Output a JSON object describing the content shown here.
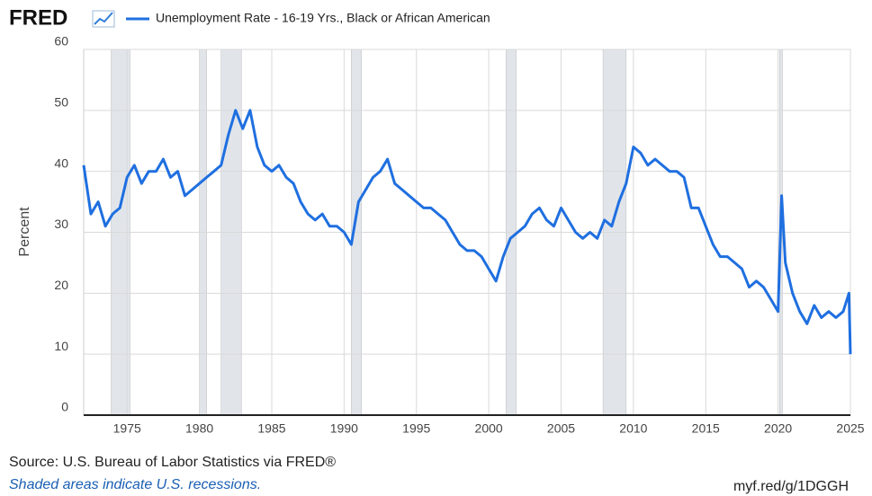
{
  "chart_data": {
    "type": "line",
    "logo": "FRED",
    "y_label": "Percent",
    "source": "Source: U.S. Bureau of Labor Statistics via FRED®",
    "note": "Shaded areas indicate U.S. recessions.",
    "link": "myf.red/g/1DGGH",
    "xlim": [
      1972,
      2025
    ],
    "xticks": [
      1975,
      1980,
      1985,
      1990,
      1995,
      2000,
      2005,
      2010,
      2015,
      2020,
      2025
    ],
    "ylim": [
      0,
      60
    ],
    "yticks": [
      0,
      10,
      20,
      30,
      40,
      50,
      60
    ],
    "grid": true,
    "recession_color": "#e1e5ea",
    "recessions": [
      [
        1973.9,
        1975.2
      ],
      [
        1980.0,
        1980.5
      ],
      [
        1981.5,
        1982.9
      ],
      [
        1990.5,
        1991.2
      ],
      [
        2001.2,
        2001.9
      ],
      [
        2007.9,
        2009.5
      ],
      [
        2020.1,
        2020.3
      ]
    ],
    "x": [
      1972.0,
      1972.5,
      1973.0,
      1973.5,
      1974.0,
      1974.5,
      1975.0,
      1975.5,
      1976.0,
      1976.5,
      1977.0,
      1977.5,
      1978.0,
      1978.5,
      1979.0,
      1979.5,
      1980.0,
      1980.5,
      1981.0,
      1981.5,
      1982.0,
      1982.5,
      1983.0,
      1983.5,
      1984.0,
      1984.5,
      1985.0,
      1985.5,
      1986.0,
      1986.5,
      1987.0,
      1987.5,
      1988.0,
      1988.5,
      1989.0,
      1989.5,
      1990.0,
      1990.5,
      1991.0,
      1991.5,
      1992.0,
      1992.5,
      1993.0,
      1993.5,
      1994.0,
      1994.5,
      1995.0,
      1995.5,
      1996.0,
      1996.5,
      1997.0,
      1997.5,
      1998.0,
      1998.5,
      1999.0,
      1999.5,
      2000.0,
      2000.5,
      2001.0,
      2001.5,
      2002.0,
      2002.5,
      2003.0,
      2003.5,
      2004.0,
      2004.5,
      2005.0,
      2005.5,
      2006.0,
      2006.5,
      2007.0,
      2007.5,
      2008.0,
      2008.5,
      2009.0,
      2009.5,
      2010.0,
      2010.5,
      2011.0,
      2011.5,
      2012.0,
      2012.5,
      2013.0,
      2013.5,
      2014.0,
      2014.5,
      2015.0,
      2015.5,
      2016.0,
      2016.5,
      2017.0,
      2017.5,
      2018.0,
      2018.5,
      2019.0,
      2019.5,
      2020.0,
      2020.25,
      2020.5,
      2021.0,
      2021.5,
      2022.0,
      2022.5,
      2023.0,
      2023.5,
      2024.0,
      2024.5,
      2024.9,
      2025.0
    ],
    "series": [
      {
        "name": "Unemployment Rate - 16-19 Yrs., Black or African American",
        "color": "#1f6fe0",
        "values": [
          41,
          33,
          35,
          31,
          33,
          34,
          39,
          41,
          38,
          40,
          40,
          42,
          39,
          40,
          36,
          37,
          38,
          39,
          40,
          41,
          46,
          50,
          47,
          50,
          44,
          41,
          40,
          41,
          39,
          38,
          35,
          33,
          32,
          33,
          31,
          31,
          30,
          28,
          35,
          37,
          39,
          40,
          42,
          38,
          37,
          36,
          35,
          34,
          34,
          33,
          32,
          30,
          28,
          27,
          27,
          26,
          24,
          22,
          26,
          29,
          30,
          31,
          33,
          34,
          32,
          31,
          34,
          32,
          30,
          29,
          30,
          29,
          32,
          31,
          35,
          38,
          44,
          43,
          41,
          42,
          41,
          40,
          40,
          39,
          34,
          34,
          31,
          28,
          26,
          26,
          25,
          24,
          21,
          22,
          21,
          19,
          17,
          36,
          25,
          20,
          17,
          15,
          18,
          16,
          17,
          16,
          17,
          20,
          10
        ]
      }
    ]
  }
}
